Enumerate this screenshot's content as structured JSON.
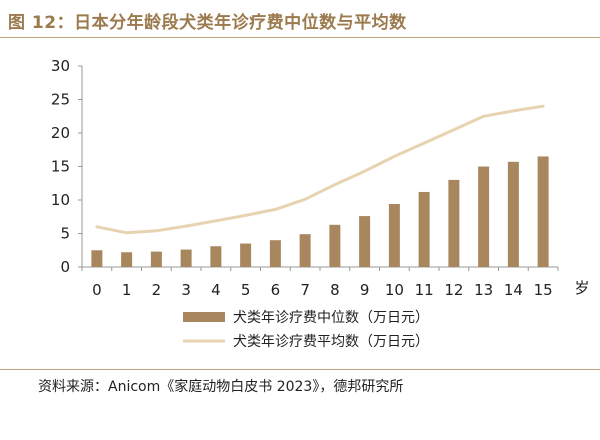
{
  "title": "图 12：日本分年龄段犬类年诊疗费中位数与平均数",
  "source": "资料来源：Anicom《家庭动物白皮书 2023》，德邦研究所",
  "colors": {
    "bar": "#a8875e",
    "line": "#e8d3b0",
    "accent": "#9b7a4e"
  },
  "chart_data": {
    "type": "bar",
    "categories": [
      "0",
      "1",
      "2",
      "3",
      "4",
      "5",
      "6",
      "7",
      "8",
      "9",
      "10",
      "11",
      "12",
      "13",
      "14",
      "15"
    ],
    "x_unit_label": "岁",
    "ylim": [
      0,
      30
    ],
    "yticks": [
      0,
      5,
      10,
      15,
      20,
      25,
      30
    ],
    "grid": false,
    "legend_position": "bottom-center",
    "series": [
      {
        "name": "犬类年诊疗费中位数（万日元）",
        "type": "bar",
        "values": [
          2.5,
          2.2,
          2.3,
          2.6,
          3.1,
          3.5,
          4.0,
          4.9,
          6.3,
          7.6,
          9.4,
          11.2,
          13.0,
          15.0,
          15.7,
          16.5
        ]
      },
      {
        "name": "犬类年诊疗费平均数（万日元）",
        "type": "line",
        "values": [
          6.0,
          5.1,
          5.4,
          6.1,
          6.9,
          7.7,
          8.6,
          10.1,
          12.3,
          14.3,
          16.5,
          18.5,
          20.5,
          22.5,
          23.3,
          24.0
        ]
      }
    ]
  }
}
